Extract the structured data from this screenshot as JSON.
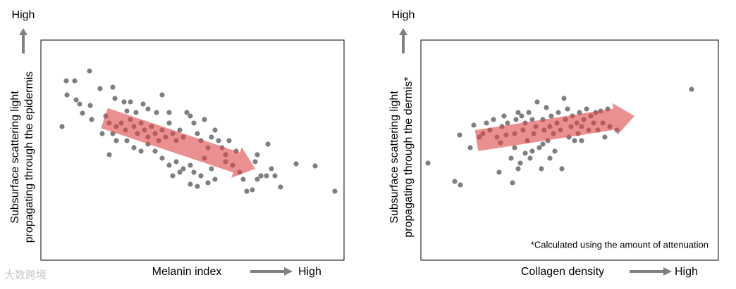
{
  "chart_data": [
    {
      "type": "scatter",
      "color": "#7f7f7f",
      "xlim": [
        0,
        430
      ],
      "ylim": [
        0,
        313
      ],
      "ylabel": [
        "Subsurface scattering light",
        "propagating through the epidermis"
      ],
      "y_high": "High",
      "xlabel": "Melanin index",
      "x_high": "High",
      "x": [
        36,
        48,
        69,
        37,
        50,
        55,
        30,
        70,
        59,
        72,
        84,
        102,
        105,
        118,
        127,
        122,
        135,
        145,
        152,
        172,
        164,
        182,
        92,
        97,
        87,
        102,
        107,
        114,
        120,
        127,
        132,
        137,
        142,
        147,
        152,
        157,
        162,
        167,
        172,
        177,
        182,
        187,
        192,
        197,
        202,
        207,
        212,
        217,
        222,
        227,
        232,
        237,
        242,
        247,
        252,
        257,
        262,
        267,
        272,
        277,
        122,
        132,
        142,
        152,
        162,
        172,
        182,
        192,
        202,
        212,
        217,
        227,
        232,
        242,
        247,
        97,
        107,
        187,
        197,
        212,
        222,
        237,
        282,
        287,
        292,
        300,
        307,
        307,
        312,
        320,
        322,
        327,
        332,
        340,
        362,
        389,
        417,
        304,
        262
      ],
      "values": [
        255,
        255,
        269,
        235,
        228,
        222,
        190,
        220,
        209,
        200,
        244,
        246,
        230,
        225,
        225,
        212,
        210,
        222,
        215,
        235,
        210,
        210,
        205,
        195,
        180,
        180,
        190,
        195,
        185,
        200,
        190,
        180,
        195,
        185,
        175,
        190,
        180,
        170,
        185,
        175,
        195,
        180,
        170,
        185,
        175,
        210,
        205,
        195,
        180,
        170,
        200,
        160,
        175,
        185,
        170,
        160,
        150,
        170,
        135,
        155,
        170,
        160,
        155,
        165,
        155,
        145,
        135,
        140,
        130,
        135,
        125,
        120,
        145,
        130,
        115,
        150,
        170,
        120,
        125,
        108,
        105,
        110,
        125,
        115,
        98,
        100,
        150,
        115,
        120,
        120,
        165,
        130,
        120,
        104,
        137,
        134,
        98,
        140,
        140
      ]
    },
    {
      "type": "scatter",
      "color": "#7f7f7f",
      "xlim": [
        0,
        422
      ],
      "ylim": [
        0,
        313
      ],
      "ylabel": [
        "Subsurface scattering light",
        "propagating through the dermis*"
      ],
      "y_high": "High",
      "xlabel": "Collagen density",
      "x_high": "High",
      "annotation": "*Calculated using the amount of attenuation",
      "x": [
        10,
        48,
        56,
        55,
        70,
        75,
        83,
        88,
        93,
        98,
        103,
        108,
        111,
        115,
        118,
        123,
        128,
        130,
        133,
        135,
        138,
        141,
        143,
        145,
        148,
        151,
        153,
        155,
        158,
        160,
        163,
        165,
        168,
        171,
        173,
        175,
        178,
        180,
        183,
        185,
        188,
        190,
        193,
        195,
        198,
        200,
        203,
        205,
        208,
        210,
        213,
        215,
        218,
        221,
        223,
        225,
        228,
        231,
        235,
        238,
        241,
        245,
        248,
        251,
        255,
        258,
        261,
        265,
        268,
        148,
        138,
        158,
        173,
        133,
        121,
        113,
        183,
        228,
        278,
        384
      ],
      "values": [
        138,
        112,
        107,
        178,
        160,
        192,
        175,
        180,
        195,
        185,
        200,
        175,
        125,
        190,
        205,
        195,
        145,
        110,
        180,
        200,
        210,
        138,
        205,
        185,
        195,
        170,
        210,
        145,
        200,
        180,
        190,
        225,
        160,
        130,
        200,
        185,
        217,
        170,
        190,
        205,
        180,
        155,
        195,
        210,
        185,
        130,
        230,
        200,
        215,
        175,
        190,
        205,
        170,
        195,
        180,
        210,
        190,
        200,
        215,
        185,
        205,
        195,
        210,
        185,
        212,
        195,
        175,
        215,
        190,
        152,
        130,
        155,
        165,
        160,
        178,
        167,
        145,
        170,
        185,
        243
      ]
    }
  ],
  "watermark": "大数跨境"
}
